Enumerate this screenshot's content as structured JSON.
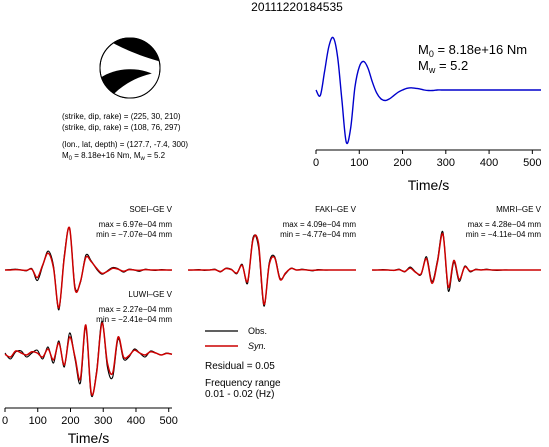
{
  "title": "20111220184535",
  "focal_mechanism": {
    "line1": "(strike, dip, rake) = (225, 30, 210)",
    "line2": "(strike, dip, rake) = (108, 76, 297)",
    "line3": "(lon., lat, depth) = (127.7, -7.4, 300)",
    "line4": "M",
    "line4_sub": "0",
    "line4_rest": " = 8.18e+16 Nm, M",
    "line4_sub2": "w",
    "line4_tail": " = 5.2"
  },
  "stf": {
    "m0_main": "M",
    "m0_sub": "0",
    "m0_value": " = 8.18e+16 Nm",
    "mw_main": "M",
    "mw_sub": "w",
    "mw_value": " = 5.2",
    "color": "#0000cc"
  },
  "legend": {
    "obs": "Obs.",
    "syn": "Syn.",
    "obs_color": "#000000",
    "syn_color": "#cc0000"
  },
  "residual": "Residual = 0.05",
  "freq_label": "Frequency range",
  "freq_value": "0.01 - 0.02 (Hz)",
  "chart_data": [
    {
      "type": "line",
      "name": "source-time-function",
      "xlabel": "Time/s",
      "xlim": [
        0,
        520
      ],
      "xticks": [
        0,
        100,
        200,
        300,
        400,
        500
      ],
      "x": [
        0,
        10,
        20,
        30,
        40,
        50,
        60,
        70,
        80,
        90,
        100,
        110,
        120,
        130,
        140,
        150,
        160,
        170,
        180,
        190,
        200,
        210,
        220,
        230,
        240,
        250,
        260,
        270,
        280,
        290,
        300,
        310,
        320,
        330,
        340,
        350,
        360,
        370,
        380,
        390,
        400,
        420,
        440,
        460,
        480,
        500,
        520
      ],
      "y": [
        0.0,
        -0.1,
        0.35,
        0.8,
        0.95,
        0.6,
        -0.2,
        -0.95,
        -0.7,
        0.05,
        0.42,
        0.52,
        0.4,
        0.15,
        -0.05,
        -0.16,
        -0.19,
        -0.16,
        -0.1,
        -0.04,
        0.0,
        0.03,
        0.04,
        0.03,
        0.02,
        0.0,
        -0.01,
        -0.01,
        0.0,
        0.0,
        0.0,
        0.0,
        0.0,
        0.0,
        0.0,
        0.0,
        0.0,
        0.0,
        0.0,
        0.0,
        0.0,
        0.0,
        0.0,
        0.0,
        0.0,
        0.0,
        0.0
      ]
    },
    {
      "type": "line",
      "name": "SOEI-GE V",
      "station": "SOEI–GE V",
      "max_label": "max = 6.97e−04 mm",
      "min_label": "min = −7.07e−04 mm",
      "series": [
        {
          "name": "Obs.",
          "y": [
            0,
            0.01,
            0.02,
            0.0,
            -0.02,
            0.03,
            -0.25,
            0.1,
            0.45,
            0.1,
            -0.95,
            0.35,
            0.98,
            -0.4,
            -0.3,
            0.35,
            0.22,
            0.02,
            -0.1,
            -0.02,
            0.06,
            0.03,
            -0.05,
            0.02,
            0.0,
            -0.03,
            0.02,
            0.0,
            -0.01,
            0.01,
            0.0,
            0.0
          ]
        },
        {
          "name": "Syn.",
          "y": [
            0,
            0.0,
            0.01,
            0.0,
            -0.01,
            0.02,
            -0.18,
            0.12,
            0.4,
            0.05,
            -0.9,
            0.3,
            1.0,
            -0.45,
            -0.28,
            0.3,
            0.2,
            0.04,
            -0.08,
            -0.03,
            0.04,
            0.02,
            -0.03,
            0.01,
            0.0,
            -0.01,
            0.01,
            0.0,
            0.0,
            0.0,
            0.0,
            0.0
          ]
        }
      ]
    },
    {
      "type": "line",
      "name": "FAKI-GE V",
      "station": "FAKI–GE V",
      "max_label": "max = 4.09e−04 mm",
      "min_label": "min = −4.77e−04 mm",
      "series": [
        {
          "name": "Obs.",
          "y": [
            0,
            0.0,
            0.01,
            -0.01,
            0.0,
            0.02,
            -0.05,
            0.05,
            0.02,
            -0.1,
            0.15,
            -0.35,
            0.85,
            0.6,
            -0.95,
            0.2,
            0.35,
            -0.22,
            -0.1,
            0.05,
            0.0,
            0.02,
            0.0,
            -0.02,
            0.01,
            0.0,
            0.0,
            0.0,
            0.0,
            0.0,
            0.0,
            0.0
          ]
        },
        {
          "name": "Syn.",
          "y": [
            0,
            0.0,
            0.0,
            0.0,
            0.0,
            0.01,
            -0.04,
            0.04,
            0.01,
            -0.08,
            0.12,
            -0.3,
            0.8,
            0.7,
            -0.9,
            0.15,
            0.32,
            -0.25,
            -0.08,
            0.04,
            0.0,
            0.01,
            0.0,
            -0.01,
            0.0,
            0.0,
            0.0,
            0.0,
            0.0,
            0.0,
            0.0,
            0.0
          ]
        }
      ]
    },
    {
      "type": "line",
      "name": "MMRI-GE V",
      "station": "MMRI–GE V",
      "max_label": "max = 4.28e−04 mm",
      "min_label": "min = −4.11e−04 mm",
      "series": [
        {
          "name": "Obs.",
          "y": [
            0,
            0.0,
            0.01,
            0.0,
            -0.01,
            0.02,
            -0.05,
            0.08,
            -0.05,
            -0.12,
            0.35,
            -0.3,
            0.25,
            1.0,
            -0.55,
            0.2,
            -0.3,
            0.1,
            -0.05,
            0.02,
            0.0,
            0.02,
            0.0,
            -0.01,
            0.0,
            0.0,
            0.0,
            0.0,
            0.0,
            0.0,
            0.0,
            0.0
          ]
        },
        {
          "name": "Syn.",
          "y": [
            0,
            0.0,
            0.0,
            0.0,
            -0.01,
            0.01,
            -0.04,
            0.05,
            -0.06,
            -0.1,
            0.3,
            -0.35,
            0.2,
            0.95,
            -0.45,
            0.25,
            -0.25,
            0.08,
            -0.03,
            0.01,
            0.0,
            0.01,
            0.0,
            0.0,
            0.0,
            0.0,
            0.0,
            0.0,
            0.0,
            0.0,
            0.0,
            0.0
          ]
        }
      ]
    },
    {
      "type": "line",
      "name": "LUWI-GE V",
      "station": "LUWI–GE V",
      "max_label": "max = 2.27e−04 mm",
      "min_label": "min = −2.41e−04 mm",
      "xlabel": "Time/s",
      "xlim": [
        0,
        510
      ],
      "xticks": [
        0,
        100,
        200,
        300,
        400,
        500
      ],
      "series": [
        {
          "name": "Obs.",
          "y": [
            0.05,
            -0.1,
            0.08,
            0.1,
            -0.05,
            0.05,
            0.12,
            -0.1,
            0.2,
            -0.2,
            0.35,
            -0.3,
            0.55,
            -0.1,
            -0.7,
            0.7,
            -1.0,
            -0.4,
            0.85,
            -0.3,
            -0.55,
            0.4,
            -0.1,
            -0.05,
            0.15,
            0.05,
            -0.05,
            0.1,
            0.05,
            0.0,
            0.05,
            0.02
          ]
        },
        {
          "name": "Syn.",
          "y": [
            0.02,
            -0.05,
            0.1,
            0.05,
            0.0,
            0.08,
            0.05,
            -0.05,
            0.15,
            -0.12,
            0.3,
            -0.25,
            0.45,
            -0.05,
            -0.6,
            0.75,
            -0.95,
            -0.45,
            0.8,
            -0.2,
            -0.45,
            0.45,
            -0.05,
            -0.02,
            0.12,
            0.05,
            0.0,
            0.08,
            0.05,
            0.0,
            0.04,
            0.02
          ]
        }
      ]
    }
  ]
}
